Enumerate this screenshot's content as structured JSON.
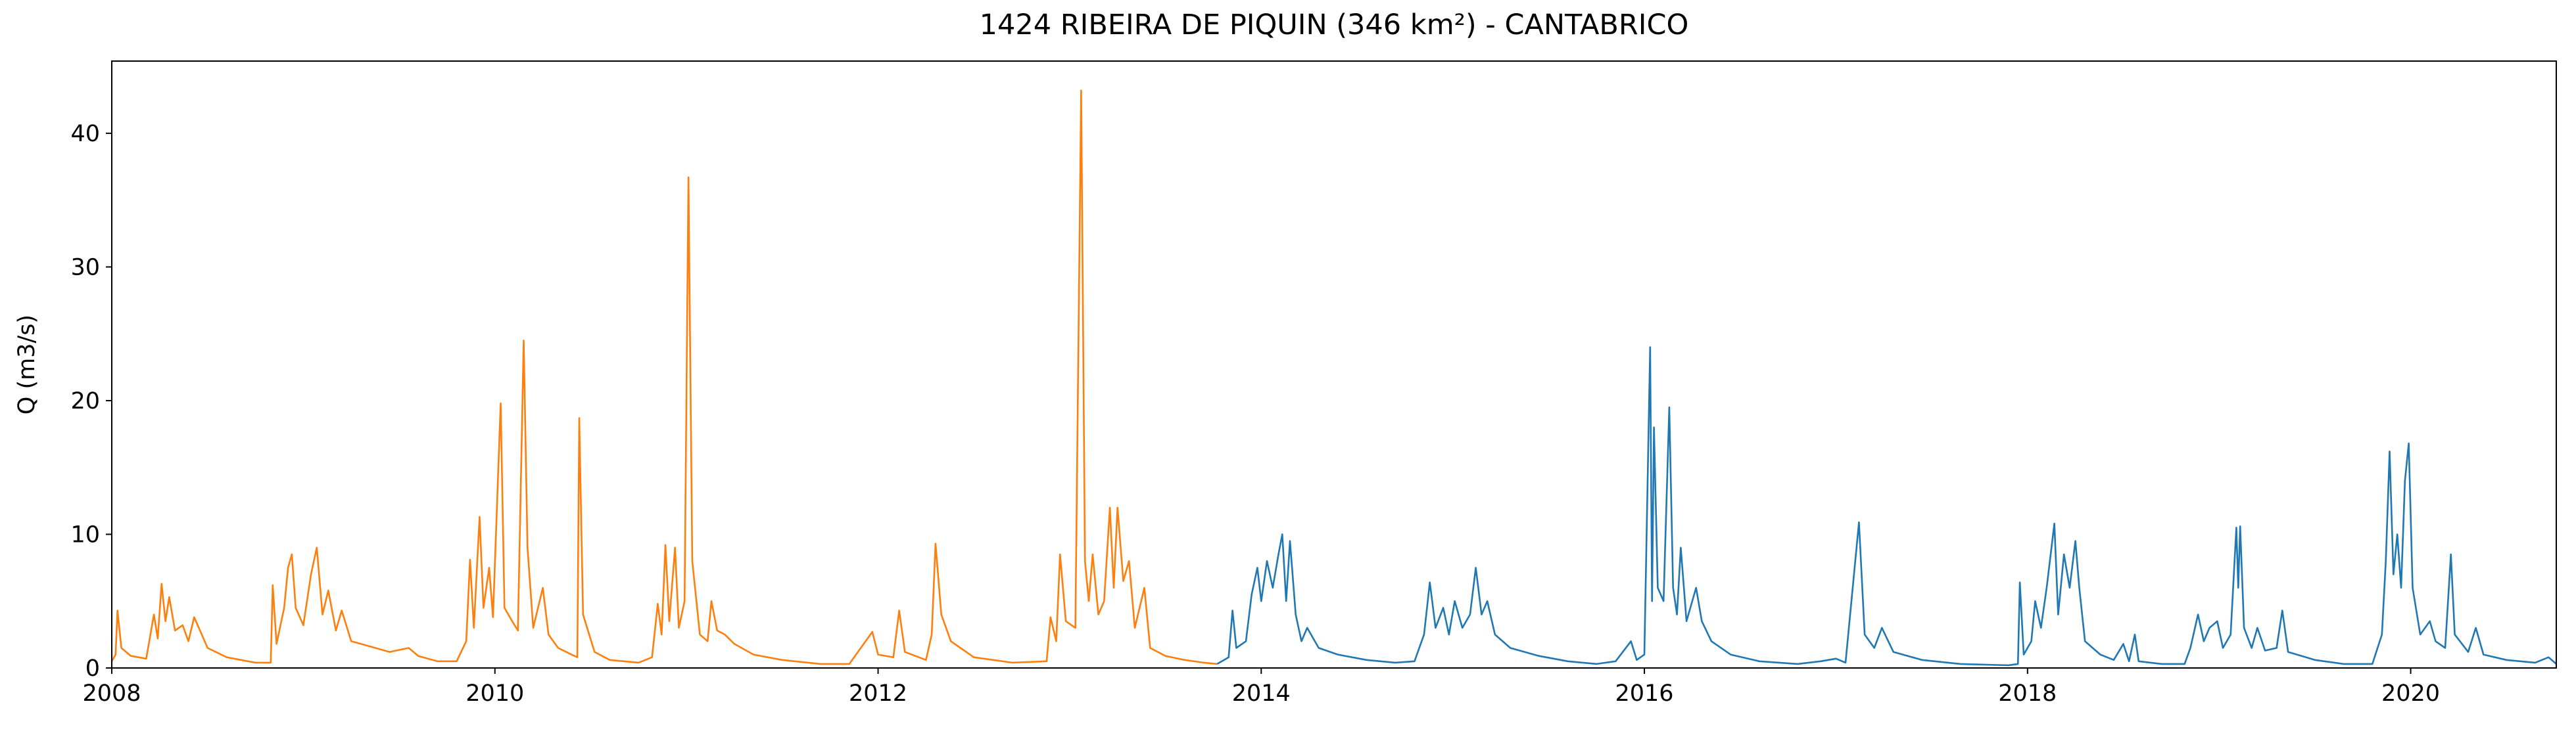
{
  "chart_data": {
    "type": "line",
    "title": "1424 RIBEIRA DE PIQUIN (346 km²) - CANTABRICO",
    "y_label": "Q (m3/s)",
    "xlim": [
      2008,
      2020.76
    ],
    "xticks": [
      2008,
      2010,
      2012,
      2014,
      2016,
      2018,
      2020
    ],
    "ylim": [
      0,
      45.4
    ],
    "yticks": [
      0,
      10,
      20,
      30,
      40
    ],
    "series": [
      {
        "color": "#ff7f0e",
        "x": [
          2008.0,
          2008.02,
          2008.03,
          2008.05,
          2008.1,
          2008.18,
          2008.22,
          2008.24,
          2008.26,
          2008.28,
          2008.3,
          2008.33,
          2008.37,
          2008.4,
          2008.43,
          2008.47,
          2008.5,
          2008.6,
          2008.75,
          2008.83,
          2008.84,
          2008.86,
          2008.9,
          2008.92,
          2008.94,
          2008.96,
          2009.0,
          2009.04,
          2009.07,
          2009.1,
          2009.13,
          2009.17,
          2009.2,
          2009.25,
          2009.35,
          2009.45,
          2009.55,
          2009.6,
          2009.7,
          2009.8,
          2009.85,
          2009.87,
          2009.89,
          2009.92,
          2009.94,
          2009.97,
          2009.99,
          2010.03,
          2010.05,
          2010.09,
          2010.12,
          2010.15,
          2010.17,
          2010.2,
          2010.25,
          2010.28,
          2010.33,
          2010.4,
          2010.43,
          2010.44,
          2010.46,
          2010.52,
          2010.6,
          2010.75,
          2010.82,
          2010.85,
          2010.87,
          2010.89,
          2010.91,
          2010.94,
          2010.96,
          2010.99,
          2011.01,
          2011.03,
          2011.07,
          2011.11,
          2011.13,
          2011.16,
          2011.2,
          2011.25,
          2011.35,
          2011.5,
          2011.7,
          2011.85,
          2011.97,
          2012.0,
          2012.08,
          2012.11,
          2012.14,
          2012.25,
          2012.28,
          2012.3,
          2012.33,
          2012.38,
          2012.5,
          2012.7,
          2012.88,
          2012.9,
          2012.93,
          2012.95,
          2012.98,
          2013.03,
          2013.06,
          2013.08,
          2013.1,
          2013.12,
          2013.15,
          2013.18,
          2013.21,
          2013.23,
          2013.25,
          2013.28,
          2013.31,
          2013.34,
          2013.39,
          2013.42,
          2013.5,
          2013.6,
          2013.7,
          2013.77
        ],
        "values": [
          0.5,
          1.0,
          4.3,
          1.5,
          0.9,
          0.7,
          4.0,
          2.2,
          6.3,
          3.5,
          5.3,
          2.8,
          3.2,
          2.0,
          3.8,
          2.5,
          1.5,
          0.8,
          0.4,
          0.4,
          6.2,
          1.8,
          4.5,
          7.5,
          8.5,
          4.5,
          3.2,
          7.0,
          9.0,
          4.0,
          5.8,
          2.8,
          4.3,
          2.0,
          1.6,
          1.2,
          1.5,
          0.9,
          0.5,
          0.5,
          2.0,
          8.1,
          3.0,
          11.3,
          4.5,
          7.5,
          3.8,
          19.8,
          4.5,
          3.5,
          2.8,
          24.5,
          9.0,
          3.0,
          6.0,
          2.5,
          1.5,
          1.0,
          0.8,
          18.7,
          4.0,
          1.2,
          0.6,
          0.4,
          0.8,
          4.8,
          2.5,
          9.2,
          3.5,
          9.0,
          3.0,
          5.0,
          36.7,
          8.0,
          2.5,
          2.0,
          5.0,
          2.8,
          2.5,
          1.8,
          1.0,
          0.6,
          0.3,
          0.3,
          2.7,
          1.0,
          0.8,
          4.3,
          1.2,
          0.6,
          2.5,
          9.3,
          4.0,
          2.0,
          0.8,
          0.4,
          0.5,
          3.8,
          2.0,
          8.5,
          3.5,
          3.0,
          43.2,
          8.0,
          5.0,
          8.5,
          4.0,
          5.0,
          12.0,
          6.0,
          12.0,
          6.5,
          8.0,
          3.0,
          6.0,
          1.5,
          0.9,
          0.6,
          0.4,
          0.3
        ]
      },
      {
        "color": "#1f77b4",
        "x": [
          2013.77,
          2013.83,
          2013.85,
          2013.87,
          2013.92,
          2013.95,
          2013.98,
          2014.0,
          2014.03,
          2014.06,
          2014.09,
          2014.11,
          2014.13,
          2014.15,
          2014.18,
          2014.21,
          2014.24,
          2014.3,
          2014.4,
          2014.55,
          2014.7,
          2014.8,
          2014.85,
          2014.88,
          2014.91,
          2014.95,
          2014.98,
          2015.01,
          2015.05,
          2015.09,
          2015.12,
          2015.15,
          2015.18,
          2015.22,
          2015.3,
          2015.45,
          2015.6,
          2015.75,
          2015.85,
          2015.93,
          2015.96,
          2016.0,
          2016.03,
          2016.04,
          2016.05,
          2016.07,
          2016.1,
          2016.13,
          2016.15,
          2016.17,
          2016.19,
          2016.22,
          2016.27,
          2016.3,
          2016.35,
          2016.45,
          2016.6,
          2016.8,
          2016.92,
          2017.0,
          2017.05,
          2017.12,
          2017.15,
          2017.2,
          2017.24,
          2017.3,
          2017.45,
          2017.65,
          2017.9,
          2017.95,
          2017.96,
          2017.98,
          2018.02,
          2018.04,
          2018.07,
          2018.1,
          2018.14,
          2018.16,
          2018.19,
          2018.22,
          2018.25,
          2018.27,
          2018.3,
          2018.38,
          2018.45,
          2018.5,
          2018.53,
          2018.56,
          2018.58,
          2018.7,
          2018.82,
          2018.85,
          2018.89,
          2018.92,
          2018.95,
          2018.99,
          2019.02,
          2019.06,
          2019.09,
          2019.1,
          2019.11,
          2019.13,
          2019.17,
          2019.2,
          2019.24,
          2019.3,
          2019.33,
          2019.36,
          2019.5,
          2019.65,
          2019.8,
          2019.85,
          2019.87,
          2019.89,
          2019.91,
          2019.93,
          2019.95,
          2019.97,
          2019.99,
          2020.01,
          2020.05,
          2020.1,
          2020.13,
          2020.18,
          2020.21,
          2020.23,
          2020.3,
          2020.34,
          2020.38,
          2020.5,
          2020.65,
          2020.72,
          2020.76
        ],
        "values": [
          0.3,
          0.8,
          4.3,
          1.5,
          2.0,
          5.5,
          7.5,
          5.0,
          8.0,
          6.0,
          8.5,
          10.0,
          5.0,
          9.5,
          4.0,
          2.0,
          3.0,
          1.5,
          1.0,
          0.6,
          0.4,
          0.5,
          2.5,
          6.4,
          3.0,
          4.5,
          2.5,
          5.0,
          3.0,
          4.0,
          7.5,
          4.0,
          5.0,
          2.5,
          1.5,
          0.9,
          0.5,
          0.3,
          0.5,
          2.0,
          0.6,
          1.0,
          24.0,
          5.0,
          18.0,
          6.0,
          5.0,
          19.5,
          6.0,
          4.0,
          9.0,
          3.5,
          6.0,
          3.5,
          2.0,
          1.0,
          0.5,
          0.3,
          0.5,
          0.7,
          0.4,
          10.9,
          2.5,
          1.5,
          3.0,
          1.2,
          0.6,
          0.3,
          0.2,
          0.3,
          6.4,
          1.0,
          2.0,
          5.0,
          3.0,
          6.0,
          10.8,
          4.0,
          8.5,
          6.0,
          9.5,
          6.0,
          2.0,
          1.0,
          0.6,
          1.8,
          0.5,
          2.5,
          0.5,
          0.3,
          0.3,
          1.5,
          4.0,
          2.0,
          3.0,
          3.5,
          1.5,
          2.5,
          10.5,
          6.0,
          10.6,
          3.0,
          1.5,
          3.0,
          1.3,
          1.5,
          4.3,
          1.2,
          0.6,
          0.3,
          0.3,
          2.5,
          8.0,
          16.2,
          7.0,
          10.0,
          6.0,
          14.0,
          16.8,
          6.0,
          2.5,
          3.5,
          2.0,
          1.5,
          8.5,
          2.5,
          1.2,
          3.0,
          1.0,
          0.6,
          0.4,
          0.8,
          0.3
        ]
      }
    ]
  }
}
